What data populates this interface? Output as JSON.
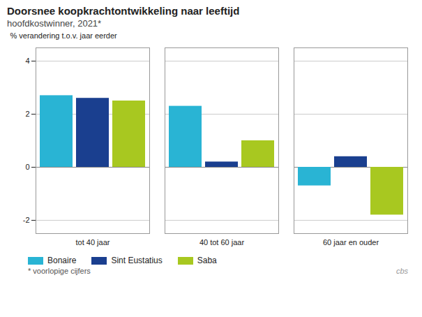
{
  "chart_data": {
    "type": "bar",
    "title": "Doorsnee koopkrachtontwikkeling naar leeftijd",
    "subtitle": "hoofdkostwinner, 2021*",
    "ylabel": "% verandering t.o.v. jaar eerder",
    "categories": [
      "tot 40 jaar",
      "40 tot 60 jaar",
      "60 jaar en ouder"
    ],
    "series": [
      {
        "name": "Bonaire",
        "color": "#29B4D4",
        "values": [
          2.7,
          2.3,
          -0.7
        ]
      },
      {
        "name": "Sint Eustatius",
        "color": "#1A3F8F",
        "values": [
          2.6,
          0.2,
          0.4
        ]
      },
      {
        "name": "Saba",
        "color": "#A8C820",
        "values": [
          2.5,
          1.0,
          -1.8
        ]
      }
    ],
    "ylim": [
      -2.5,
      4.5
    ],
    "yticks": [
      -2,
      0,
      2,
      4
    ],
    "grid": true,
    "legend": "bottom",
    "footnote": "* voorlopige cijfers",
    "annotations": [
      "cbs"
    ]
  }
}
